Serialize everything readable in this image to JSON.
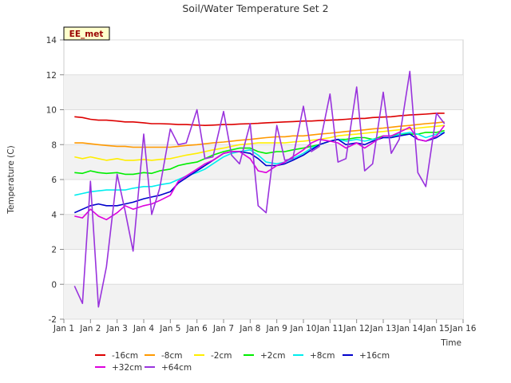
{
  "chart_data": {
    "type": "line",
    "title": "Soil/Water Temperature Set 2",
    "xlabel": "Time",
    "ylabel": "Temperature (C)",
    "badge": "EE_met",
    "xlim": [
      1,
      16
    ],
    "ylim": [
      -2,
      14
    ],
    "x_ticks": [
      {
        "v": 1,
        "label": "Jan 1"
      },
      {
        "v": 2,
        "label": "Jan 2"
      },
      {
        "v": 3,
        "label": "Jan 3"
      },
      {
        "v": 4,
        "label": "Jan 4"
      },
      {
        "v": 5,
        "label": "Jan 5"
      },
      {
        "v": 6,
        "label": "Jan 6"
      },
      {
        "v": 7,
        "label": "Jan 7"
      },
      {
        "v": 8,
        "label": "Jan 8"
      },
      {
        "v": 9,
        "label": "Jan 9"
      },
      {
        "v": 10,
        "label": "Jan 10"
      },
      {
        "v": 11,
        "label": "Jan 11"
      },
      {
        "v": 12,
        "label": "Jan 12"
      },
      {
        "v": 13,
        "label": "Jan 13"
      },
      {
        "v": 14,
        "label": "Jan 14"
      },
      {
        "v": 15,
        "label": "Jan 15"
      },
      {
        "v": 16,
        "label": "Jan 16"
      }
    ],
    "y_ticks": [
      {
        "v": -2,
        "label": "-2"
      },
      {
        "v": 0,
        "label": "0"
      },
      {
        "v": 2,
        "label": "2"
      },
      {
        "v": 4,
        "label": "4"
      },
      {
        "v": 6,
        "label": "6"
      },
      {
        "v": 8,
        "label": "8"
      },
      {
        "v": 10,
        "label": "10"
      },
      {
        "v": 12,
        "label": "12"
      },
      {
        "v": 14,
        "label": "14"
      }
    ],
    "x": [
      1.4,
      1.7,
      2.0,
      2.3,
      2.6,
      3.0,
      3.3,
      3.6,
      4.0,
      4.3,
      4.6,
      5.0,
      5.3,
      5.6,
      6.0,
      6.3,
      6.6,
      7.0,
      7.3,
      7.6,
      8.0,
      8.3,
      8.6,
      9.0,
      9.3,
      9.6,
      10.0,
      10.3,
      10.6,
      11.0,
      11.3,
      11.6,
      12.0,
      12.3,
      12.6,
      13.0,
      13.3,
      13.6,
      14.0,
      14.3,
      14.6,
      15.0,
      15.3
    ],
    "series": [
      {
        "name": "-16cm",
        "color": "#dd0000",
        "values": [
          9.6,
          9.55,
          9.45,
          9.4,
          9.4,
          9.35,
          9.3,
          9.3,
          9.25,
          9.2,
          9.2,
          9.18,
          9.15,
          9.15,
          9.12,
          9.1,
          9.12,
          9.15,
          9.15,
          9.18,
          9.2,
          9.22,
          9.25,
          9.28,
          9.3,
          9.32,
          9.35,
          9.35,
          9.38,
          9.4,
          9.42,
          9.45,
          9.5,
          9.5,
          9.55,
          9.58,
          9.6,
          9.65,
          9.7,
          9.72,
          9.75,
          9.8,
          9.8
        ]
      },
      {
        "name": "-8cm",
        "color": "#ff9900",
        "values": [
          8.1,
          8.1,
          8.05,
          8.0,
          7.95,
          7.9,
          7.9,
          7.85,
          7.85,
          7.85,
          7.85,
          7.85,
          7.9,
          7.95,
          8.0,
          8.05,
          8.1,
          8.15,
          8.2,
          8.25,
          8.3,
          8.35,
          8.4,
          8.45,
          8.45,
          8.5,
          8.5,
          8.55,
          8.6,
          8.65,
          8.7,
          8.75,
          8.8,
          8.85,
          8.9,
          8.95,
          9.0,
          9.05,
          9.1,
          9.15,
          9.2,
          9.25,
          9.3
        ]
      },
      {
        "name": "-2cm",
        "color": "#ffee00",
        "values": [
          7.3,
          7.2,
          7.3,
          7.2,
          7.1,
          7.2,
          7.1,
          7.1,
          7.15,
          7.1,
          7.15,
          7.2,
          7.3,
          7.4,
          7.5,
          7.6,
          7.7,
          7.8,
          7.9,
          8.0,
          8.05,
          8.1,
          8.1,
          8.1,
          8.1,
          8.15,
          8.2,
          8.25,
          8.3,
          8.4,
          8.5,
          8.55,
          8.6,
          8.65,
          8.7,
          8.75,
          8.8,
          8.85,
          8.9,
          8.95,
          9.0,
          9.05,
          9.1
        ]
      },
      {
        "name": "+2cm",
        "color": "#00ee00",
        "values": [
          6.4,
          6.35,
          6.5,
          6.4,
          6.35,
          6.4,
          6.3,
          6.3,
          6.4,
          6.35,
          6.5,
          6.6,
          6.8,
          6.9,
          7.0,
          7.2,
          7.4,
          7.6,
          7.7,
          7.8,
          7.8,
          7.6,
          7.5,
          7.6,
          7.6,
          7.7,
          7.8,
          7.9,
          8.0,
          8.2,
          8.3,
          8.3,
          8.4,
          8.4,
          8.3,
          8.5,
          8.5,
          8.6,
          8.6,
          8.6,
          8.7,
          8.7,
          8.8
        ]
      },
      {
        "name": "+8cm",
        "color": "#00eeee",
        "values": [
          5.1,
          5.2,
          5.3,
          5.35,
          5.4,
          5.4,
          5.4,
          5.5,
          5.6,
          5.6,
          5.7,
          5.8,
          6.0,
          6.2,
          6.4,
          6.6,
          6.9,
          7.3,
          7.5,
          7.6,
          7.7,
          7.4,
          7.0,
          6.9,
          7.0,
          7.2,
          7.5,
          7.8,
          8.0,
          8.2,
          8.3,
          8.2,
          8.3,
          8.2,
          8.3,
          8.4,
          8.4,
          8.6,
          8.7,
          8.6,
          8.4,
          8.6,
          8.7
        ]
      },
      {
        "name": "+16cm",
        "color": "#0000cc",
        "values": [
          4.1,
          4.3,
          4.5,
          4.6,
          4.5,
          4.5,
          4.6,
          4.7,
          4.9,
          5.0,
          5.1,
          5.3,
          5.8,
          6.1,
          6.5,
          6.8,
          7.1,
          7.5,
          7.6,
          7.6,
          7.5,
          7.2,
          6.8,
          6.8,
          6.9,
          7.1,
          7.4,
          7.7,
          8.0,
          8.2,
          8.3,
          8.0,
          8.1,
          8.0,
          8.2,
          8.4,
          8.4,
          8.5,
          8.6,
          8.3,
          8.2,
          8.4,
          8.7
        ]
      },
      {
        "name": "+32cm",
        "color": "#dd00dd",
        "values": [
          3.9,
          3.8,
          4.3,
          3.9,
          3.7,
          4.1,
          4.5,
          4.3,
          4.5,
          4.6,
          4.8,
          5.1,
          5.9,
          6.2,
          6.6,
          6.9,
          7.1,
          7.5,
          7.6,
          7.6,
          7.2,
          6.5,
          6.4,
          6.8,
          7.0,
          7.3,
          7.7,
          8.1,
          8.3,
          8.2,
          8.1,
          7.8,
          8.1,
          7.8,
          8.1,
          8.5,
          8.5,
          8.7,
          9.0,
          8.3,
          8.2,
          8.5,
          9.1
        ]
      },
      {
        "name": "+64cm",
        "color": "#9933dd",
        "values": [
          -0.1,
          -1.1,
          5.9,
          -1.3,
          1.0,
          6.3,
          4.2,
          1.9,
          8.6,
          4.0,
          5.5,
          8.9,
          8.0,
          8.1,
          10.0,
          7.2,
          7.3,
          9.9,
          7.4,
          6.9,
          9.2,
          4.5,
          4.1,
          9.1,
          7.1,
          7.2,
          10.2,
          7.6,
          7.9,
          10.9,
          7.0,
          7.2,
          11.3,
          6.5,
          6.9,
          11.0,
          7.5,
          8.3,
          12.2,
          6.4,
          5.6,
          9.8,
          9.2
        ]
      }
    ]
  }
}
